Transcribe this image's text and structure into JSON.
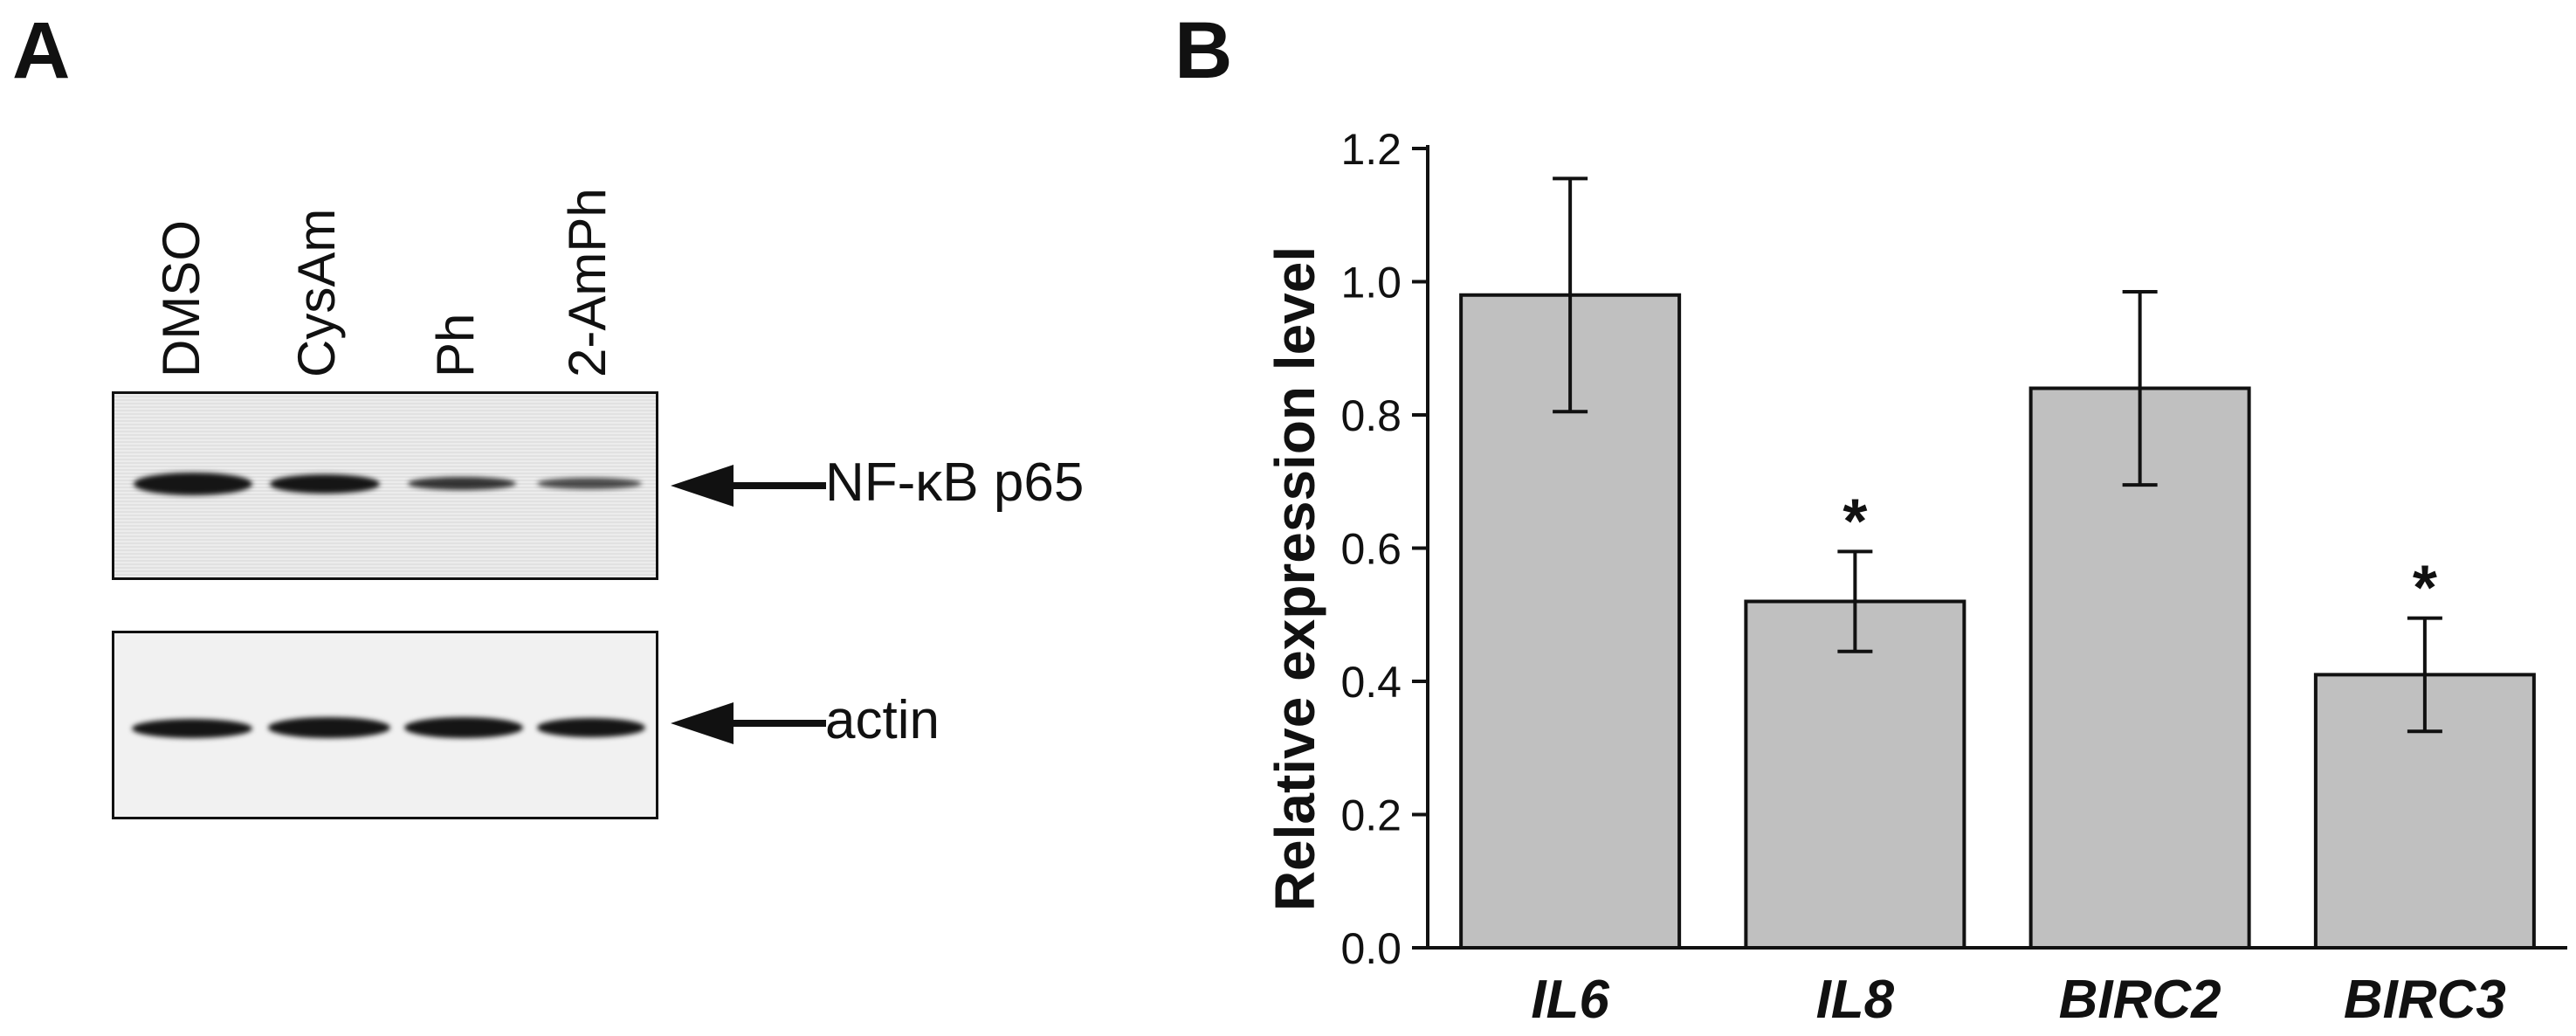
{
  "panel_a": {
    "letter": "A",
    "lanes": [
      "DMSO",
      "CysAm",
      "Ph",
      "2-AmPh"
    ],
    "blots": [
      {
        "label": "NF-κB p65",
        "band_intensity": [
          1.0,
          0.9,
          0.55,
          0.45
        ]
      },
      {
        "label": "actin",
        "band_intensity": [
          1.0,
          1.0,
          1.0,
          0.95
        ]
      }
    ]
  },
  "panel_b": {
    "letter": "B"
  },
  "chart_data": {
    "type": "bar",
    "categories": [
      "IL6",
      "IL8",
      "BIRC2",
      "BIRC3"
    ],
    "values": [
      0.98,
      0.52,
      0.84,
      0.41
    ],
    "errors": [
      0.175,
      0.075,
      0.145,
      0.085
    ],
    "significance": [
      "",
      "*",
      "",
      "*"
    ],
    "title": "",
    "xlabel": "",
    "ylabel": "Relative expression level",
    "ylim": [
      0,
      1.2
    ],
    "yticks": [
      "0.0",
      "0.2",
      "0.4",
      "0.6",
      "0.8",
      "1.0",
      "1.2"
    ],
    "bar_color": "#c0c0c0",
    "grid": false,
    "legend": "none"
  }
}
